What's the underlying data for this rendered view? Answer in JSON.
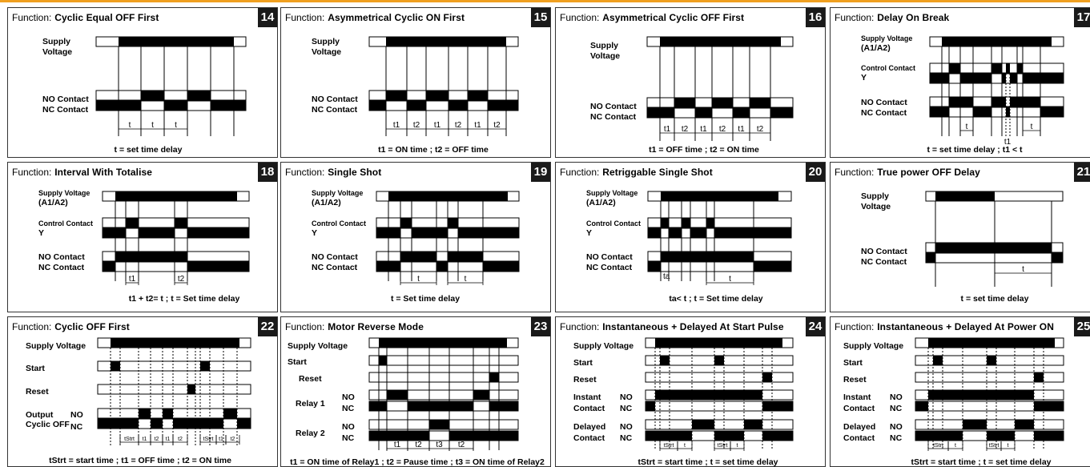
{
  "function_word": "Function:",
  "panels": [
    {
      "num": "14",
      "name": "Cyclic Equal OFF First",
      "caption": "t = set time delay",
      "labels": [
        "Supply",
        "Voltage",
        "NO Contact",
        "NC Contact"
      ],
      "marks": [
        "t",
        "t",
        "t"
      ]
    },
    {
      "num": "15",
      "name": "Asymmetrical Cyclic ON First",
      "caption": "t1 = ON time ; t2 = OFF time",
      "labels": [
        "Supply",
        "Voltage",
        "NO Contact",
        "NC Contact"
      ],
      "marks": [
        "t1",
        "t2",
        "t1",
        "t2",
        "t1",
        "t2"
      ]
    },
    {
      "num": "16",
      "name": "Asymmetrical Cyclic OFF First",
      "caption": "t1 = OFF time ; t2 = ON time",
      "labels": [
        "Supply",
        "Voltage",
        "NO Contact",
        "NC Contact"
      ],
      "marks": [
        "t1",
        "t2",
        "t1",
        "t2",
        "t1",
        "t2"
      ]
    },
    {
      "num": "17",
      "name": "Delay On Break",
      "caption": "t = set time delay ; t1 < t",
      "labels": [
        "Supply Voltage",
        "(A1/A2)",
        "Control Contact",
        "Y",
        "NO Contact",
        "NC Contact"
      ],
      "marks": [
        "t",
        "t1",
        "t"
      ]
    },
    {
      "num": "18",
      "name": "Interval With Totalise",
      "caption": "t1 + t2= t ; t = Set time delay",
      "labels": [
        "Supply Voltage",
        "(A1/A2)",
        "Control Contact",
        "Y",
        "NO Contact",
        "NC Contact"
      ],
      "marks": [
        "t1",
        "t2"
      ]
    },
    {
      "num": "19",
      "name": "Single Shot",
      "caption": "t = Set time delay",
      "labels": [
        "Supply Voltage",
        "(A1/A2)",
        "Control Contact",
        "Y",
        "NO Contact",
        "NC Contact"
      ],
      "marks": [
        "t",
        "t"
      ]
    },
    {
      "num": "20",
      "name": "Retriggable Single Shot",
      "caption": "ta< t ; t = Set time delay",
      "labels": [
        "Supply Voltage",
        "(A1/A2)",
        "Control Contact",
        "Y",
        "NO Contact",
        "NC Contact"
      ],
      "marks": [
        "ta",
        "t"
      ]
    },
    {
      "num": "21",
      "name": "True power OFF Delay",
      "caption": "t = set time delay",
      "labels": [
        "Supply",
        "Voltage",
        "NO Contact",
        "NC Contact"
      ],
      "marks": [
        "t"
      ]
    },
    {
      "num": "22",
      "name": "Cyclic OFF First",
      "caption": "tStrt = start time ; t1 = OFF time ; t2 = ON time",
      "labels": [
        "Supply Voltage",
        "Start",
        "Reset",
        "Output",
        "NO",
        "Cyclic OFF",
        "NC"
      ],
      "marks": [
        "tStrt",
        "t1",
        "t2",
        "t1",
        "t2",
        "tStrt",
        "t1",
        "t2"
      ]
    },
    {
      "num": "23",
      "name": "Motor Reverse Mode",
      "caption": "t1 = ON time of Relay1 ; t2 = Pause time ; t3 = ON time of Relay2",
      "labels": [
        "Supply Voltage",
        "Start",
        "Reset",
        "Relay 1",
        "NO",
        "NC",
        "Relay 2",
        "NO",
        "NC"
      ],
      "marks": [
        "t1",
        "t2",
        "t3",
        "t2"
      ]
    },
    {
      "num": "24",
      "name": "Instantaneous + Delayed At Start Pulse",
      "caption": "tStrt = start time ; t = set time delay",
      "labels": [
        "Supply Voltage",
        "Start",
        "Reset",
        "Instant",
        "NO",
        "Contact",
        "NC",
        "Delayed",
        "NO",
        "Contact",
        "NC"
      ],
      "marks": [
        "tStrt",
        "t",
        "tStrt",
        "t"
      ]
    },
    {
      "num": "25",
      "name": "Instantaneous + Delayed At Power ON",
      "caption": "tStrt = start time ; t = set time delay",
      "labels": [
        "Supply Voltage",
        "Start",
        "Reset",
        "Instant",
        "NO",
        "Contact",
        "NC",
        "Delayed",
        "NO",
        "Contact",
        "NC"
      ],
      "marks": [
        "tStrt",
        "t",
        "tStrt",
        "t"
      ]
    }
  ]
}
